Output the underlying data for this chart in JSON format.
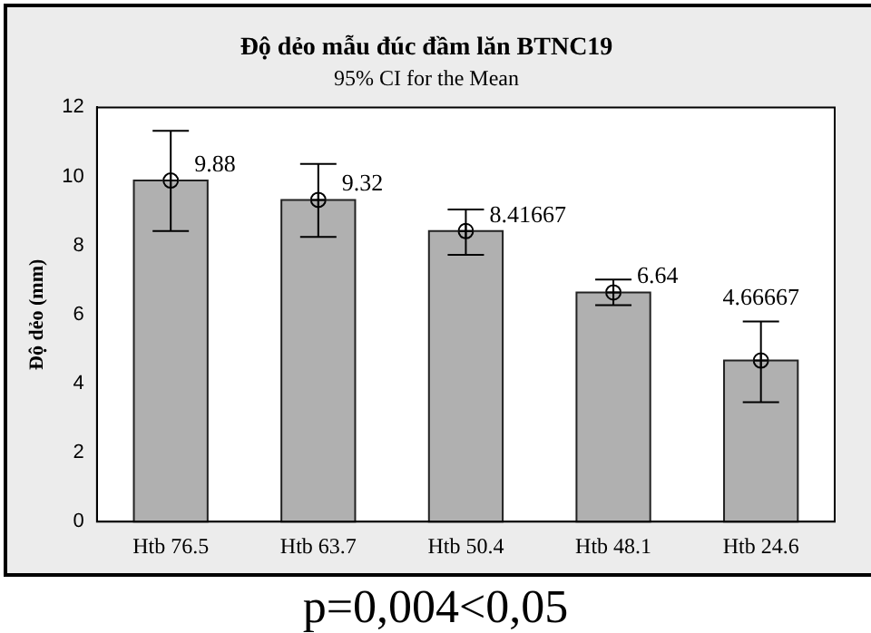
{
  "chart_data": {
    "type": "bar",
    "title": "Độ dẻo mẫu đúc đầm lăn BTNC19",
    "subtitle": "95% CI for the Mean",
    "ylabel": "Độ dẻo (mm)",
    "categories": [
      "Htb 76.5",
      "Htb 63.7",
      "Htb 50.4",
      "Htb 48.1",
      "Htb 24.6"
    ],
    "series": [
      {
        "color": "#b0b0b0",
        "values": [
          9.88,
          9.32,
          8.41667,
          6.64,
          4.66667
        ],
        "errors": [
          [
            8.42,
            11.32
          ],
          [
            8.25,
            10.36
          ],
          [
            7.73,
            9.04
          ],
          [
            6.27,
            7.01
          ],
          [
            3.46,
            5.8
          ]
        ]
      },
      {
        "type": "scatter",
        "color": "#000000",
        "x": [
          "Htb 76.5",
          "Htb 63.7",
          "Htb 50.4",
          "Htb 48.1",
          "Htb 24.6"
        ],
        "values": [
          9.88,
          9.32,
          8.41667,
          6.64,
          4.66667
        ],
        "value_labels": [
          "9.88",
          "9.32",
          "8.41667",
          "6.64",
          "4.66667"
        ],
        "marker": "circle"
      }
    ],
    "ylim": [
      0,
      12
    ],
    "yticks": [
      0,
      2,
      4,
      6,
      8,
      10,
      12
    ],
    "grid": false,
    "legend": false,
    "annotations": [
      "p=0,004<0,05"
    ]
  }
}
